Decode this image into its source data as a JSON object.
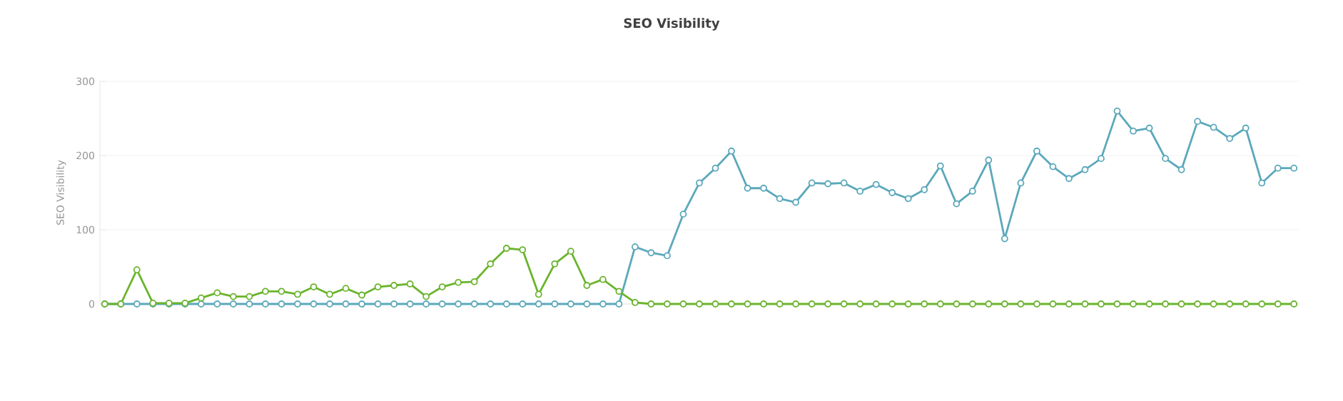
{
  "chart_data": {
    "type": "line",
    "title": "SEO Visibility",
    "ylabel": "SEO Visibility",
    "categories": [
      null,
      null,
      null,
      null,
      null,
      null,
      null,
      null,
      null,
      null,
      null,
      null,
      null,
      null,
      null,
      null,
      null,
      null,
      null,
      null,
      null,
      null,
      null,
      null,
      null,
      null,
      null,
      null,
      null,
      null,
      null,
      null,
      null,
      null,
      null,
      null,
      null,
      null,
      null,
      null,
      null,
      null,
      null,
      null,
      null,
      null,
      null,
      null,
      null,
      null,
      null,
      null,
      null,
      null,
      null,
      null,
      null,
      null,
      null,
      null,
      null,
      null,
      null,
      null,
      null,
      null,
      null,
      null,
      null,
      null,
      null,
      null,
      null,
      null,
      null
    ],
    "ylim": [
      0,
      300
    ],
    "yticks": [
      0,
      100,
      200,
      300
    ],
    "grid": "y",
    "marker": "circle",
    "line_style": "solid",
    "series": [
      {
        "color": "#5ba8bb",
        "values": [
          0,
          0,
          0,
          0,
          0,
          0,
          0,
          0,
          0,
          0,
          0,
          0,
          0,
          0,
          0,
          0,
          0,
          0,
          0,
          0,
          0,
          0,
          0,
          0,
          0,
          0,
          0,
          0,
          0,
          0,
          0,
          0,
          0,
          77,
          69,
          65,
          121,
          163,
          183,
          206,
          156,
          156,
          142,
          137,
          163,
          162,
          163,
          152,
          161,
          150,
          142,
          154,
          186,
          135,
          152,
          194,
          88,
          163,
          206,
          185,
          169,
          181,
          196,
          260,
          233,
          237,
          196,
          181,
          246,
          238,
          223,
          237,
          163,
          183,
          183
        ]
      },
      {
        "color": "#6ab42d",
        "values": [
          0,
          0,
          46,
          1,
          1,
          1,
          8,
          15,
          10,
          10,
          17,
          17,
          13,
          23,
          13,
          21,
          12,
          23,
          25,
          27,
          10,
          23,
          29,
          30,
          54,
          75,
          73,
          13,
          54,
          71,
          25,
          33,
          17,
          2,
          0,
          0,
          0,
          0,
          0,
          0,
          0,
          0,
          0,
          0,
          0,
          0,
          0,
          0,
          0,
          0,
          0,
          0,
          0,
          0,
          0,
          0,
          0,
          0,
          0,
          0,
          0,
          0,
          0,
          0,
          0,
          0,
          0,
          0,
          0,
          0,
          0,
          0,
          0,
          0,
          0
        ]
      }
    ]
  }
}
